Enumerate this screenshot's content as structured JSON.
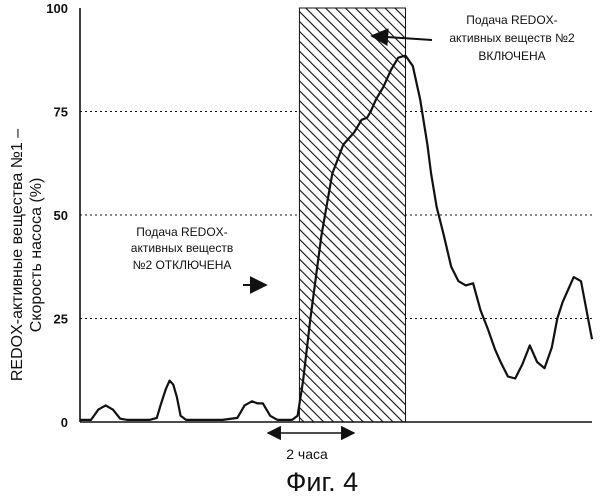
{
  "chart_data": {
    "type": "line",
    "title": "",
    "xlabel": "",
    "ylabel_line1": "REDOX-активные вещества №1 –",
    "ylabel_line2": "Скорость  насоса (%)",
    "ylim": [
      0,
      100
    ],
    "xlim": [
      0,
      14
    ],
    "y_ticks": [
      "0",
      "25",
      "50",
      "75",
      "100"
    ],
    "grid": "dashed horizontal at 25, 50, 75",
    "series": [
      {
        "x": [
          0.0,
          0.3,
          0.5,
          0.7,
          0.9,
          1.1,
          1.3,
          1.6,
          1.9,
          2.1,
          2.2,
          2.35,
          2.45,
          2.55,
          2.65,
          2.75,
          2.9,
          3.1,
          3.5,
          3.9,
          4.3,
          4.5,
          4.7,
          4.85,
          5.0,
          5.2,
          5.4,
          5.6,
          5.8,
          5.95,
          6.1,
          6.3,
          6.6,
          6.9,
          7.2,
          7.5,
          7.7,
          7.85,
          7.95,
          8.1,
          8.3,
          8.5,
          8.7,
          8.9,
          9.1,
          9.3,
          9.5,
          9.6,
          9.75,
          9.95,
          10.15,
          10.35,
          10.55,
          10.75,
          10.95,
          11.15,
          11.35,
          11.5,
          11.7,
          11.9,
          12.1,
          12.3,
          12.5,
          12.7,
          12.9,
          13.05,
          13.2,
          13.35,
          13.5,
          13.7,
          13.85,
          14.0
        ],
        "y": [
          0.5,
          0.5,
          3.0,
          4.0,
          3.0,
          0.8,
          0.5,
          0.5,
          0.5,
          1.0,
          4.0,
          8.0,
          10.0,
          9.0,
          6.0,
          1.5,
          0.5,
          0.5,
          0.5,
          0.5,
          1.0,
          4.0,
          5.0,
          4.5,
          4.5,
          1.5,
          0.5,
          0.5,
          0.5,
          1.5,
          10.0,
          25.0,
          45.0,
          60.0,
          67.0,
          70.0,
          73.0,
          73.5,
          75.0,
          78.0,
          81.0,
          85.0,
          88.0,
          88.5,
          86.0,
          78.0,
          67.0,
          60.0,
          52.0,
          45.0,
          37.5,
          34.0,
          33.0,
          33.5,
          27.0,
          22.5,
          17.5,
          14.5,
          11.0,
          10.5,
          14.0,
          18.5,
          14.5,
          13.0,
          18.0,
          25.0,
          29.0,
          32.0,
          35.0,
          34.0,
          27.0,
          20.0
        ]
      }
    ],
    "shaded_region_x": [
      6.0,
      8.9
    ],
    "bracket_label": "2 часа",
    "annotations": [
      {
        "lines": [
          "Подача REDOX-",
          "активных веществ",
          "№2  ОТКЛЮЧЕНА"
        ]
      },
      {
        "lines": [
          "Подача REDOX-",
          "активных веществ №2",
          "ВКЛЮЧЕНА"
        ]
      }
    ]
  },
  "caption": "Фиг. 4"
}
